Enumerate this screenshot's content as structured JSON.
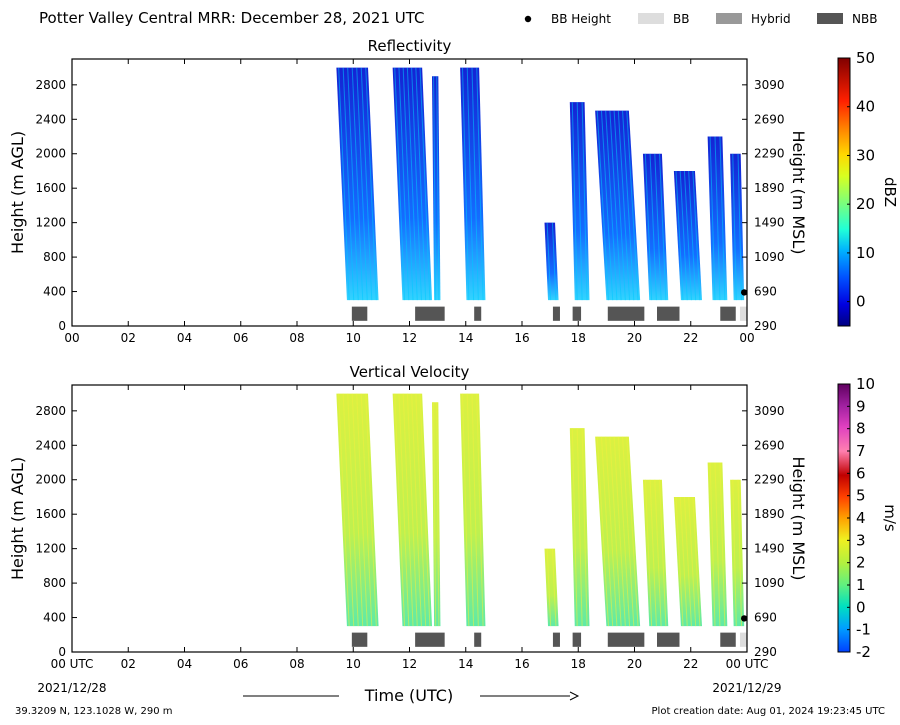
{
  "header": {
    "title": "Potter Valley Central MRR:  December 28, 2021 UTC",
    "legend": [
      {
        "label": "BB Height",
        "kind": "dot",
        "color": "#000000"
      },
      {
        "label": "BB",
        "kind": "box",
        "color": "#dddddd"
      },
      {
        "label": "Hybrid",
        "kind": "box",
        "color": "#999999"
      },
      {
        "label": "NBB",
        "kind": "box",
        "color": "#555555"
      }
    ]
  },
  "footer": {
    "location": "39.3209 N, 123.1028 W, 290 m",
    "created": "Plot creation date: Aug 01, 2024 19:23:45 UTC",
    "xlabel": "Time (UTC)",
    "start_date": "2021/12/28",
    "end_date": "2021/12/29"
  },
  "chart_data": [
    {
      "type": "heatmap",
      "title": "Reflectivity",
      "ylabel": "Height (m AGL)",
      "ylabel_right": "Height (m MSL)",
      "colorbar_label": "dBZ",
      "x_ticks": [
        "00",
        "02",
        "04",
        "06",
        "08",
        "10",
        "12",
        "14",
        "16",
        "18",
        "20",
        "22",
        "00"
      ],
      "y_ticks": [
        "0",
        "400",
        "800",
        "1200",
        "1600",
        "2000",
        "2400",
        "2800"
      ],
      "y_ticks_right": [
        "290",
        "690",
        "1090",
        "1490",
        "1890",
        "2290",
        "2690",
        "3090"
      ],
      "colorbar_ticks": [
        "0",
        "10",
        "20",
        "30",
        "40",
        "50"
      ],
      "colorbar_range": [
        -5,
        50
      ],
      "xlim_hours": [
        0,
        24
      ],
      "ylim_m": [
        0,
        3100
      ],
      "echo_columns_hours": [
        {
          "start": 9.4,
          "end": 10.9,
          "top_m": 3000
        },
        {
          "start": 11.4,
          "end": 12.8,
          "top_m": 3000
        },
        {
          "start": 12.8,
          "end": 13.1,
          "top_m": 2900
        },
        {
          "start": 13.8,
          "end": 14.7,
          "top_m": 3000
        },
        {
          "start": 16.8,
          "end": 17.3,
          "top_m": 1200
        },
        {
          "start": 17.7,
          "end": 18.4,
          "top_m": 2600
        },
        {
          "start": 18.6,
          "end": 20.2,
          "top_m": 2500
        },
        {
          "start": 20.3,
          "end": 21.2,
          "top_m": 2000
        },
        {
          "start": 21.4,
          "end": 22.4,
          "top_m": 1800
        },
        {
          "start": 22.6,
          "end": 23.3,
          "top_m": 2200
        },
        {
          "start": 23.4,
          "end": 23.9,
          "top_m": 2000
        }
      ],
      "nbb_segments_hours": [
        [
          9.95,
          10.5
        ],
        [
          12.2,
          13.25
        ],
        [
          14.3,
          14.55
        ],
        [
          17.1,
          17.35
        ],
        [
          17.8,
          18.1
        ],
        [
          19.05,
          20.35
        ],
        [
          20.8,
          21.6
        ],
        [
          23.05,
          23.6
        ]
      ],
      "bb_segments_hours": [
        [
          23.75,
          24.0
        ]
      ],
      "bb_height_points": [
        {
          "hour": 23.9,
          "height_m": 390
        }
      ]
    },
    {
      "type": "heatmap",
      "title": "Vertical Velocity",
      "ylabel": "Height (m AGL)",
      "ylabel_right": "Height (m MSL)",
      "colorbar_label": "m/s",
      "x_ticks": [
        "00 UTC",
        "02",
        "04",
        "06",
        "08",
        "10",
        "12",
        "14",
        "16",
        "18",
        "20",
        "22",
        "00 UTC"
      ],
      "y_ticks": [
        "0",
        "400",
        "800",
        "1200",
        "1600",
        "2000",
        "2400",
        "2800"
      ],
      "y_ticks_right": [
        "290",
        "690",
        "1090",
        "1490",
        "1890",
        "2290",
        "2690",
        "3090"
      ],
      "colorbar_ticks": [
        "-2",
        "-1",
        "0",
        "1",
        "2",
        "3",
        "4",
        "5",
        "6",
        "7",
        "8",
        "9",
        "10"
      ],
      "colorbar_range": [
        -2,
        10
      ],
      "xlim_hours": [
        0,
        24
      ],
      "ylim_m": [
        0,
        3100
      ],
      "echo_columns_hours": [
        {
          "start": 9.4,
          "end": 10.9,
          "top_m": 3000
        },
        {
          "start": 11.4,
          "end": 12.8,
          "top_m": 3000
        },
        {
          "start": 12.8,
          "end": 13.1,
          "top_m": 2900
        },
        {
          "start": 13.8,
          "end": 14.7,
          "top_m": 3000
        },
        {
          "start": 16.8,
          "end": 17.3,
          "top_m": 1200
        },
        {
          "start": 17.7,
          "end": 18.4,
          "top_m": 2600
        },
        {
          "start": 18.6,
          "end": 20.2,
          "top_m": 2500
        },
        {
          "start": 20.3,
          "end": 21.2,
          "top_m": 2000
        },
        {
          "start": 21.4,
          "end": 22.4,
          "top_m": 1800
        },
        {
          "start": 22.6,
          "end": 23.3,
          "top_m": 2200
        },
        {
          "start": 23.4,
          "end": 23.9,
          "top_m": 2000
        }
      ],
      "nbb_segments_hours": [
        [
          9.95,
          10.5
        ],
        [
          12.2,
          13.25
        ],
        [
          14.3,
          14.55
        ],
        [
          17.1,
          17.35
        ],
        [
          17.8,
          18.1
        ],
        [
          19.05,
          20.35
        ],
        [
          20.8,
          21.6
        ],
        [
          23.05,
          23.6
        ]
      ],
      "bb_segments_hours": [
        [
          23.75,
          24.0
        ]
      ],
      "bb_height_points": [
        {
          "hour": 23.9,
          "height_m": 390
        }
      ]
    }
  ]
}
